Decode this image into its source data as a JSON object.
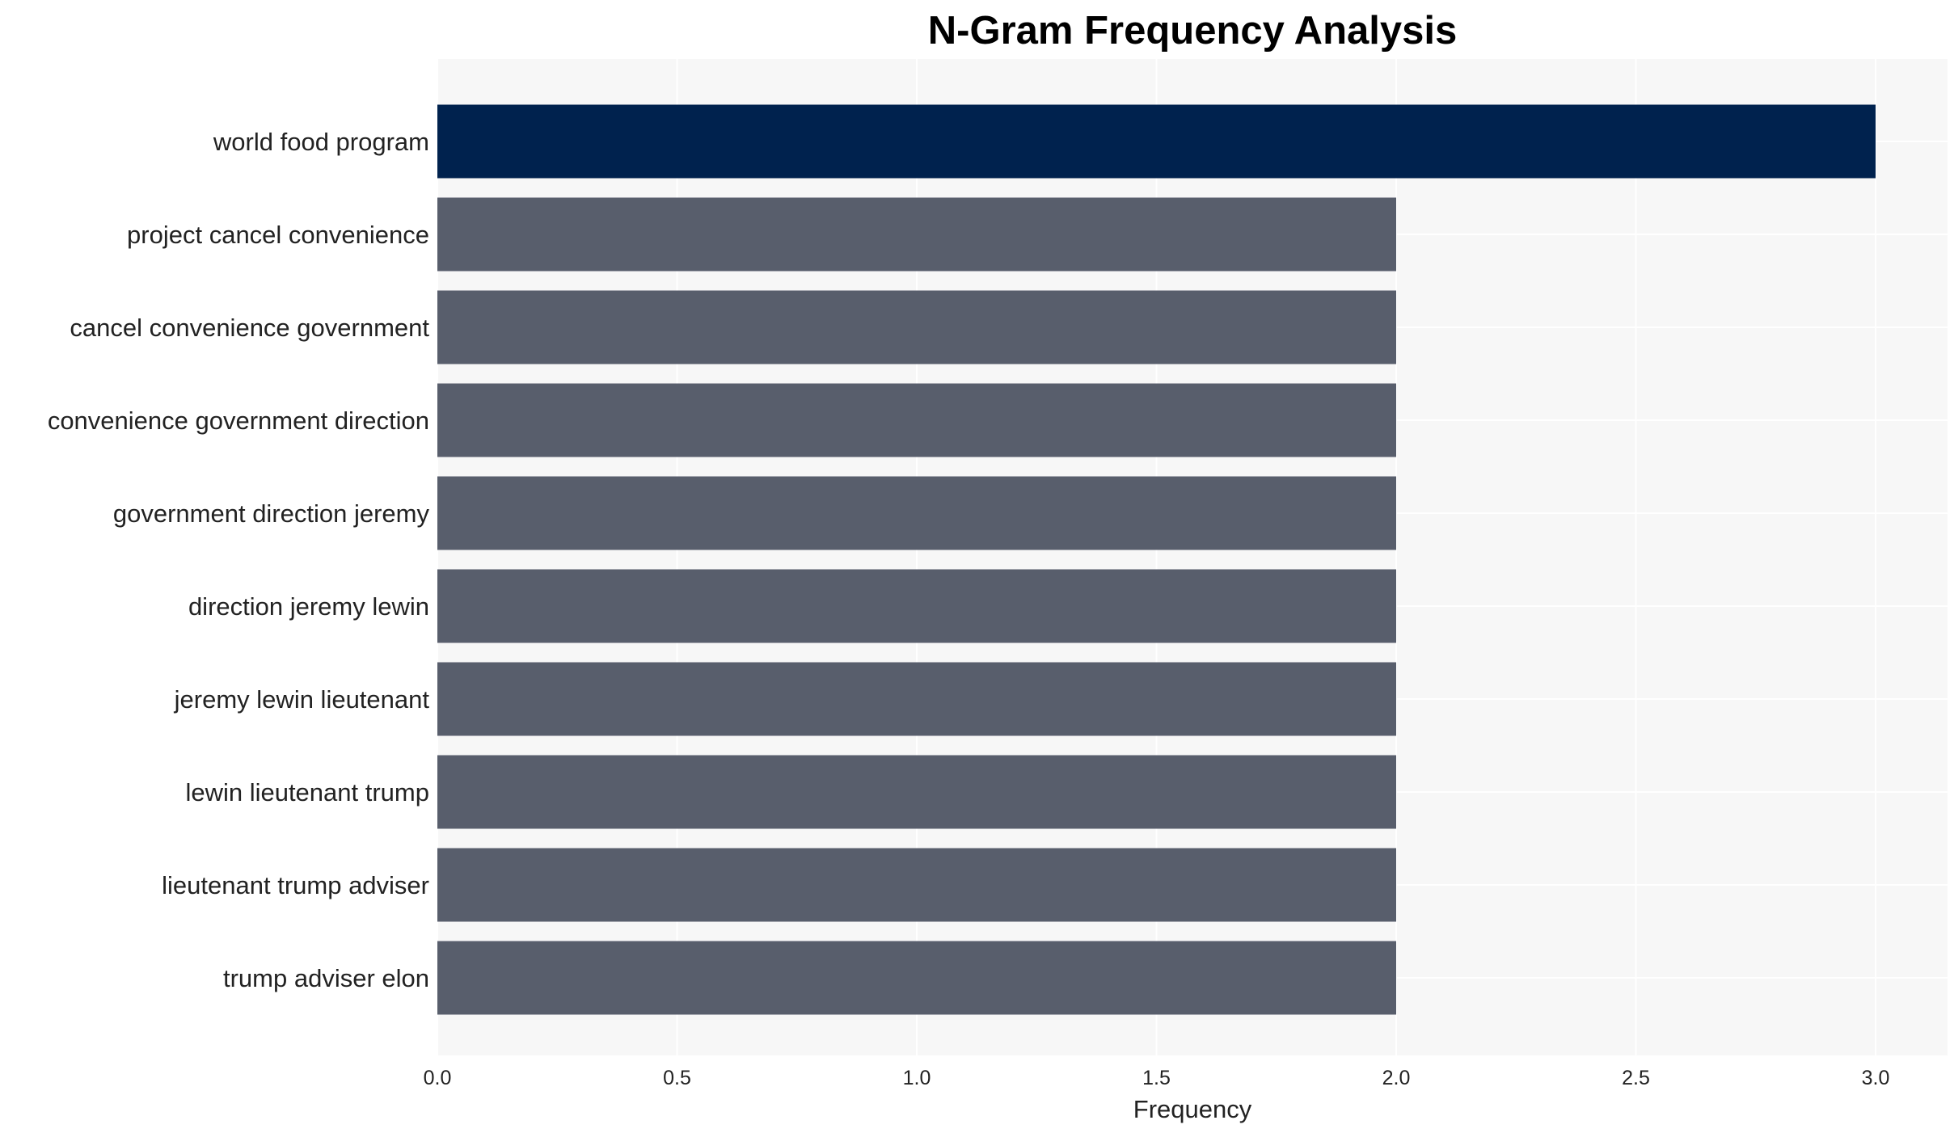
{
  "chart_data": {
    "type": "bar",
    "orientation": "horizontal",
    "title": "N-Gram Frequency Analysis",
    "xlabel": "Frequency",
    "ylabel": "",
    "xlim": [
      0,
      3.15
    ],
    "xticks": [
      "0.0",
      "0.5",
      "1.0",
      "1.5",
      "2.0",
      "2.5",
      "3.0"
    ],
    "grid": true,
    "categories": [
      "world food program",
      "project cancel convenience",
      "cancel convenience government",
      "convenience government direction",
      "government direction jeremy",
      "direction jeremy lewin",
      "jeremy lewin lieutenant",
      "lewin lieutenant trump",
      "lieutenant trump adviser",
      "trump adviser elon"
    ],
    "values": [
      3,
      2,
      2,
      2,
      2,
      2,
      2,
      2,
      2,
      2
    ],
    "colors": {
      "highlight": "#00224e",
      "default": "#585e6c",
      "plot_background": "#f7f7f7",
      "grid": "#ffffff"
    }
  }
}
